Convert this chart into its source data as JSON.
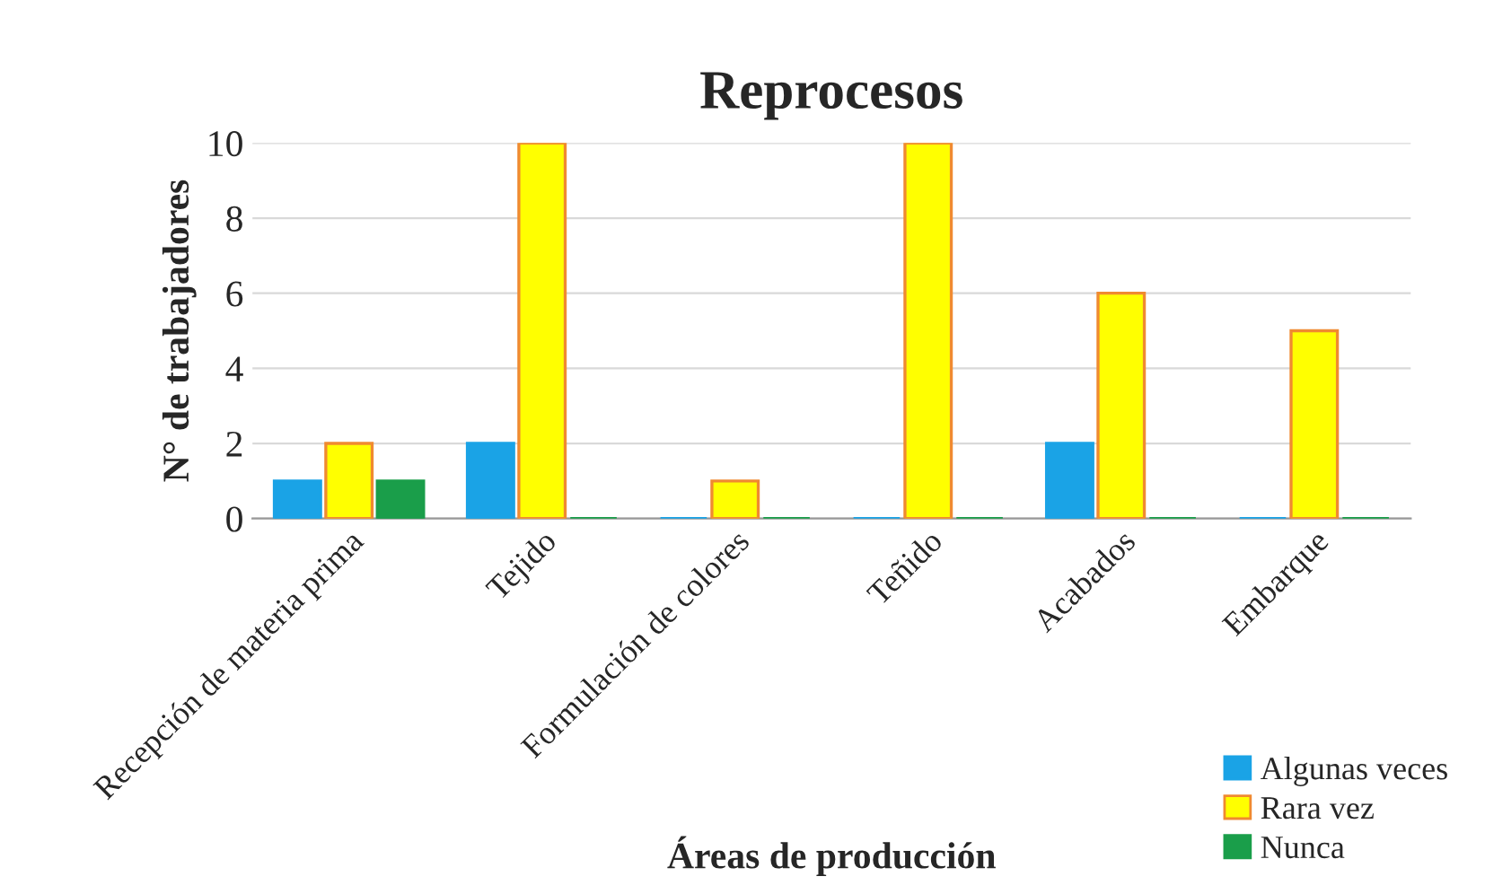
{
  "chart_data": {
    "type": "bar",
    "title": "Reprocesos",
    "xlabel": "Áreas de producción",
    "ylabel": "N° de trabajadores",
    "categories": [
      "Recepción de materia prima",
      "Tejido",
      "Formulación de colores",
      "Teñido",
      "Acabados",
      "Embarque"
    ],
    "series": [
      {
        "name": "Algunas veces",
        "color": "#1aa3e6",
        "values": [
          1,
          2,
          0,
          0,
          2,
          0
        ]
      },
      {
        "name": "Rara vez",
        "color": "#ffff00",
        "values": [
          2,
          10,
          1,
          10,
          6,
          5
        ]
      },
      {
        "name": "Nunca",
        "color": "#1a9e4a",
        "values": [
          1,
          0,
          0,
          0,
          0,
          0
        ]
      }
    ],
    "ylim": [
      0,
      10
    ],
    "yticks": [
      0,
      2,
      4,
      6,
      8,
      10
    ],
    "grid": "y",
    "legend": "bottom right"
  }
}
